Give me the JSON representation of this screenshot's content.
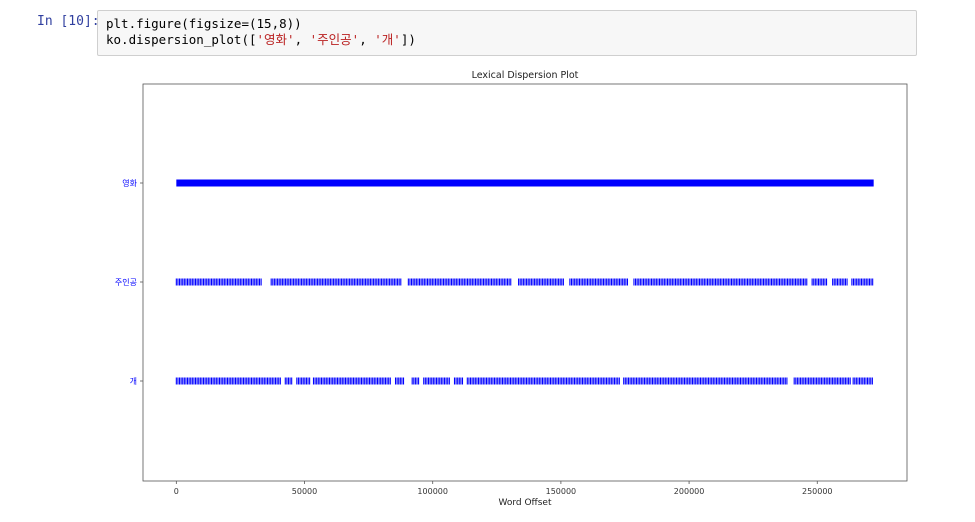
{
  "cell": {
    "prompt": "In [10]:",
    "code_lines": [
      [
        {
          "t": "plt.figure(figsize=(15,8))",
          "s": false
        }
      ],
      [
        {
          "t": "ko.dispersion_plot([",
          "s": false
        },
        {
          "t": "'영화'",
          "s": true
        },
        {
          "t": ", ",
          "s": false
        },
        {
          "t": "'주인공'",
          "s": true
        },
        {
          "t": ", ",
          "s": false
        },
        {
          "t": "'개'",
          "s": true
        },
        {
          "t": "])",
          "s": false
        }
      ]
    ]
  },
  "chart_data": {
    "type": "scatter",
    "title": "Lexical Dispersion Plot",
    "xlabel": "Word Offset",
    "ylabel": "",
    "xlim": [
      -13000,
      285000
    ],
    "x_ticks": [
      0,
      50000,
      100000,
      150000,
      200000,
      250000
    ],
    "x_tick_labels": [
      "0",
      "50000",
      "100000",
      "150000",
      "200000",
      "250000"
    ],
    "marker_color": "#0000ff",
    "categories": [
      "영화",
      "주인공",
      "개"
    ],
    "series": [
      {
        "name": "영화",
        "range": [
          0,
          272000
        ],
        "gaps": []
      },
      {
        "name": "주인공",
        "range": [
          0,
          272000
        ],
        "gaps": [
          [
            33500,
            37000
          ],
          [
            88000,
            90500
          ],
          [
            131000,
            133500
          ],
          [
            151000,
            153500
          ],
          [
            176000,
            178500
          ],
          [
            246000,
            248000
          ],
          [
            254000,
            256000
          ],
          [
            262000,
            263500
          ]
        ]
      },
      {
        "name": "개",
        "range": [
          0,
          272000
        ],
        "gaps": [
          [
            41000,
            42500
          ],
          [
            45500,
            47000
          ],
          [
            52500,
            53500
          ],
          [
            83500,
            85500
          ],
          [
            89000,
            92000
          ],
          [
            95000,
            96500
          ],
          [
            107000,
            108500
          ],
          [
            112000,
            113500
          ],
          [
            173000,
            174500
          ],
          [
            238500,
            241000
          ],
          [
            263000,
            264000
          ]
        ]
      }
    ]
  }
}
